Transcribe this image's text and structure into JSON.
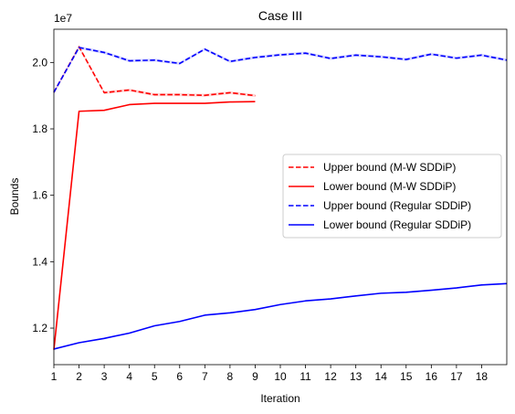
{
  "chart_data": {
    "type": "line",
    "title": "Case III",
    "xlabel": "Iteration",
    "ylabel": "Bounds",
    "y_scale_label": "1e7",
    "xlim": [
      1,
      19
    ],
    "ylim": [
      10900000,
      21000000
    ],
    "x_ticks": [
      1,
      2,
      3,
      4,
      5,
      6,
      7,
      8,
      9,
      10,
      11,
      12,
      13,
      14,
      15,
      16,
      17,
      18
    ],
    "y_ticks": [
      12000000,
      14000000,
      16000000,
      18000000,
      20000000
    ],
    "y_tick_labels": [
      "1.2",
      "1.4",
      "1.6",
      "1.8",
      "2.0"
    ],
    "grid": false,
    "legend_position": "center-right",
    "series": [
      {
        "name": "Upper bound (M-W SDDiP)",
        "color": "#ff0000",
        "dash": "dashed",
        "band": true,
        "x": [
          1,
          2,
          3,
          4,
          5,
          6,
          7,
          8,
          9
        ],
        "values": [
          19100000,
          20470000,
          19090000,
          19170000,
          19030000,
          19030000,
          19010000,
          19090000,
          19000000
        ]
      },
      {
        "name": "Lower bound (M-W SDDiP)",
        "color": "#ff0000",
        "dash": "solid",
        "band": false,
        "x": [
          1,
          2,
          3,
          4,
          5,
          6,
          7,
          8,
          9
        ],
        "values": [
          11350000,
          18530000,
          18560000,
          18730000,
          18770000,
          18770000,
          18770000,
          18810000,
          18820000
        ]
      },
      {
        "name": "Upper bound (Regular SDDiP)",
        "color": "#0000ff",
        "dash": "dashed",
        "band": true,
        "x": [
          1,
          2,
          3,
          4,
          5,
          6,
          7,
          8,
          9,
          10,
          11,
          12,
          13,
          14,
          15,
          16,
          17,
          18,
          19
        ],
        "values": [
          19100000,
          20450000,
          20300000,
          20050000,
          20070000,
          19970000,
          20400000,
          20030000,
          20150000,
          20230000,
          20280000,
          20120000,
          20220000,
          20170000,
          20090000,
          20250000,
          20130000,
          20220000,
          20070000
        ]
      },
      {
        "name": "Lower bound (Regular SDDiP)",
        "color": "#0000ff",
        "dash": "solid",
        "band": false,
        "x": [
          1,
          2,
          3,
          4,
          5,
          6,
          7,
          8,
          9,
          10,
          11,
          12,
          13,
          14,
          15,
          16,
          17,
          18,
          19
        ],
        "values": [
          11370000,
          11560000,
          11690000,
          11850000,
          12070000,
          12200000,
          12390000,
          12460000,
          12560000,
          12710000,
          12820000,
          12880000,
          12970000,
          13050000,
          13080000,
          13140000,
          13210000,
          13300000,
          13340000
        ]
      }
    ]
  }
}
